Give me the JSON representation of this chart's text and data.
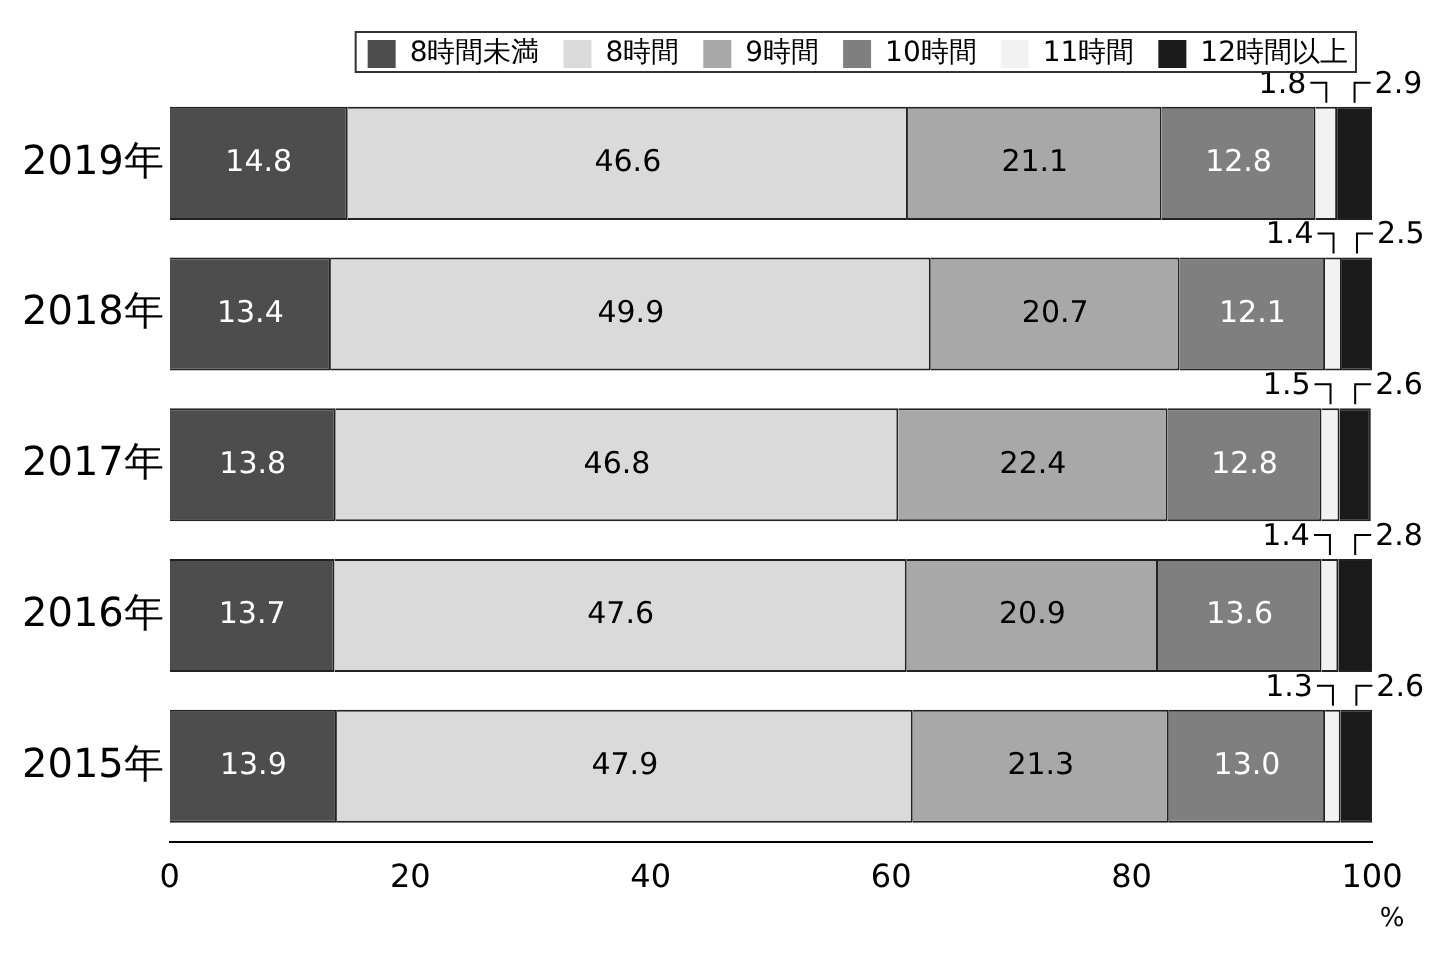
{
  "chart_data": {
    "type": "bar",
    "orientation": "horizontal",
    "stacked": true,
    "categories": [
      "2019年",
      "2018年",
      "2017年",
      "2016年",
      "2015年"
    ],
    "series": [
      {
        "name": "8時間未満",
        "color": "#4d4d4d",
        "values": [
          14.8,
          13.4,
          13.8,
          13.7,
          13.9
        ],
        "value_labels": [
          "14.8",
          "13.4",
          "13.8",
          "13.7",
          "13.9"
        ]
      },
      {
        "name": "8時間",
        "color": "#dadada",
        "values": [
          46.6,
          49.9,
          46.8,
          47.6,
          47.9
        ],
        "value_labels": [
          "46.6",
          "49.9",
          "46.8",
          "47.6",
          "47.9"
        ]
      },
      {
        "name": "9時間",
        "color": "#a8a8a8",
        "values": [
          21.1,
          20.7,
          22.4,
          20.9,
          21.3
        ],
        "value_labels": [
          "21.1",
          "20.7",
          "22.4",
          "20.9",
          "21.3"
        ]
      },
      {
        "name": "10時間",
        "color": "#7f7f7f",
        "values": [
          12.8,
          12.1,
          12.8,
          13.6,
          13.0
        ],
        "value_labels": [
          "12.8",
          "12.1",
          "12.8",
          "13.6",
          "13.0"
        ]
      },
      {
        "name": "11時間",
        "color": "#f2f2f2",
        "values": [
          1.8,
          1.4,
          1.5,
          1.4,
          1.3
        ],
        "value_labels": [
          "1.8",
          "1.4",
          "1.5",
          "1.4",
          "1.3"
        ]
      },
      {
        "name": "12時間以上",
        "color": "#1a1a1a",
        "values": [
          2.9,
          2.5,
          2.6,
          2.8,
          2.6
        ],
        "value_labels": [
          "2.9",
          "2.5",
          "2.6",
          "2.8",
          "2.6"
        ]
      }
    ],
    "xlim": [
      0,
      100
    ],
    "xticks": [
      0,
      20,
      40,
      60,
      80,
      100
    ],
    "xlabel": "%",
    "legend": "top",
    "grid": false
  }
}
